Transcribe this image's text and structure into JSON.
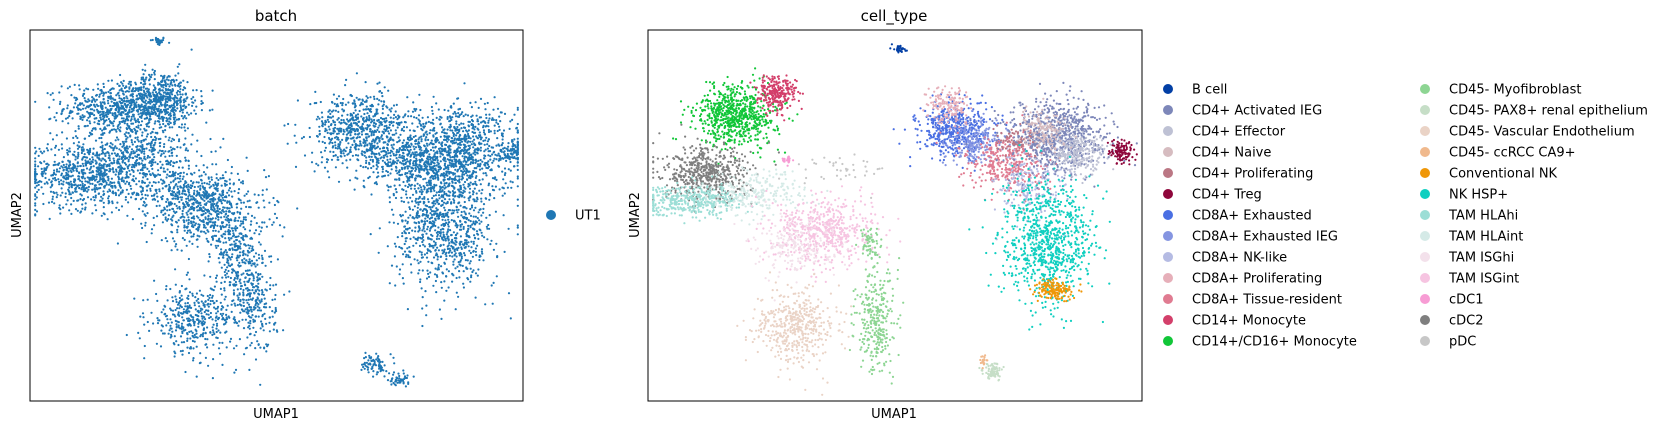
{
  "chart_data": [
    {
      "type": "scatter",
      "title": "batch",
      "xlabel": "UMAP1",
      "ylabel": "UMAP2",
      "grid": false,
      "legend_position": "right",
      "legend": [
        {
          "label": "UT1",
          "color": "#1f77b4"
        }
      ],
      "clusters": [
        {
          "label": "UT1",
          "color": "#1f77b4",
          "x": 0.26,
          "y": 0.97,
          "sx": 0.008,
          "sy": 0.006,
          "n": 30
        },
        {
          "label": "UT1",
          "color": "#1f77b4",
          "x": 0.19,
          "y": 0.79,
          "sx": 0.06,
          "sy": 0.035,
          "n": 700
        },
        {
          "label": "UT1",
          "color": "#1f77b4",
          "x": 0.27,
          "y": 0.81,
          "sx": 0.035,
          "sy": 0.04,
          "n": 400
        },
        {
          "label": "UT1",
          "color": "#1f77b4",
          "x": 0.11,
          "y": 0.61,
          "sx": 0.06,
          "sy": 0.045,
          "n": 650
        },
        {
          "label": "UT1",
          "color": "#1f77b4",
          "x": 0.22,
          "y": 0.66,
          "sx": 0.06,
          "sy": 0.04,
          "n": 450
        },
        {
          "label": "UT1",
          "color": "#1f77b4",
          "x": 0.36,
          "y": 0.51,
          "sx": 0.06,
          "sy": 0.05,
          "n": 550
        },
        {
          "label": "UT1",
          "color": "#1f77b4",
          "x": 0.3,
          "y": 0.56,
          "sx": 0.06,
          "sy": 0.025,
          "n": 250
        },
        {
          "label": "UT1",
          "color": "#1f77b4",
          "x": 0.33,
          "y": 0.22,
          "sx": 0.04,
          "sy": 0.045,
          "n": 380
        },
        {
          "label": "UT1",
          "color": "#1f77b4",
          "x": 0.45,
          "y": 0.27,
          "sx": 0.025,
          "sy": 0.07,
          "n": 300
        },
        {
          "label": "UT1",
          "color": "#1f77b4",
          "x": 0.42,
          "y": 0.4,
          "sx": 0.025,
          "sy": 0.05,
          "n": 200
        },
        {
          "label": "UT1",
          "color": "#1f77b4",
          "x": 0.67,
          "y": 0.73,
          "sx": 0.05,
          "sy": 0.05,
          "n": 650
        },
        {
          "label": "UT1",
          "color": "#1f77b4",
          "x": 0.78,
          "y": 0.65,
          "sx": 0.05,
          "sy": 0.04,
          "n": 400
        },
        {
          "label": "UT1",
          "color": "#1f77b4",
          "x": 0.87,
          "y": 0.68,
          "sx": 0.06,
          "sy": 0.06,
          "n": 850
        },
        {
          "label": "UT1",
          "color": "#1f77b4",
          "x": 0.84,
          "y": 0.48,
          "sx": 0.05,
          "sy": 0.09,
          "n": 950
        },
        {
          "label": "UT1",
          "color": "#1f77b4",
          "x": 0.98,
          "y": 0.67,
          "sx": 0.015,
          "sy": 0.015,
          "n": 70
        },
        {
          "label": "UT1",
          "color": "#1f77b4",
          "x": 0.7,
          "y": 0.1,
          "sx": 0.012,
          "sy": 0.015,
          "n": 80
        },
        {
          "label": "UT1",
          "color": "#1f77b4",
          "x": 0.75,
          "y": 0.06,
          "sx": 0.01,
          "sy": 0.01,
          "n": 50
        }
      ]
    },
    {
      "type": "scatter",
      "title": "cell_type",
      "xlabel": "UMAP1",
      "ylabel": "UMAP2",
      "grid": false,
      "legend_position": "right",
      "legend": [
        {
          "label": "B cell",
          "color": "#023fa5"
        },
        {
          "label": "CD4+ Activated IEG",
          "color": "#7d87b9"
        },
        {
          "label": "CD4+ Effector",
          "color": "#bec1d4"
        },
        {
          "label": "CD4+ Naive",
          "color": "#d6bcc0"
        },
        {
          "label": "CD4+ Proliferating",
          "color": "#bb7784"
        },
        {
          "label": "CD4+ Treg",
          "color": "#8e063b"
        },
        {
          "label": "CD8A+ Exhausted",
          "color": "#4a6fe3"
        },
        {
          "label": "CD8A+ Exhausted IEG",
          "color": "#8595e1"
        },
        {
          "label": "CD8A+ NK-like",
          "color": "#b5bbe3"
        },
        {
          "label": "CD8A+ Proliferating",
          "color": "#e6afb9"
        },
        {
          "label": "CD8A+ Tissue-resident",
          "color": "#e07b91"
        },
        {
          "label": "CD14+ Monocyte",
          "color": "#d33f6a"
        },
        {
          "label": "CD14+/CD16+ Monocyte",
          "color": "#11c638"
        },
        {
          "label": "CD45- Myofibroblast",
          "color": "#8dd593"
        },
        {
          "label": "CD45- PAX8+ renal epithelium",
          "color": "#c6dec7"
        },
        {
          "label": "CD45- Vascular Endothelium",
          "color": "#ead3c6"
        },
        {
          "label": "CD45- ccRCC CA9+",
          "color": "#f0b98d"
        },
        {
          "label": "Conventional NK",
          "color": "#ef9708"
        },
        {
          "label": "NK HSP+",
          "color": "#0fcfc0"
        },
        {
          "label": "TAM HLAhi",
          "color": "#9cded6"
        },
        {
          "label": "TAM HLAint",
          "color": "#d5eae7"
        },
        {
          "label": "TAM ISGhi",
          "color": "#f3e1eb"
        },
        {
          "label": "TAM ISGint",
          "color": "#f6c4e1"
        },
        {
          "label": "cDC1",
          "color": "#f79cd4"
        },
        {
          "label": "cDC2",
          "color": "#7f7f7f"
        },
        {
          "label": "pDC",
          "color": "#c7c7c7"
        }
      ],
      "clusters": [
        {
          "label": "B cell",
          "color": "#023fa5",
          "x": 0.51,
          "y": 0.95,
          "sx": 0.006,
          "sy": 0.006,
          "n": 30
        },
        {
          "label": "CD14+/CD16+ Monocyte",
          "color": "#11c638",
          "x": 0.18,
          "y": 0.77,
          "sx": 0.04,
          "sy": 0.04,
          "n": 700
        },
        {
          "label": "CD14+ Monocyte",
          "color": "#d33f6a",
          "x": 0.26,
          "y": 0.83,
          "sx": 0.02,
          "sy": 0.025,
          "n": 250
        },
        {
          "label": "cDC2",
          "color": "#7f7f7f",
          "x": 0.12,
          "y": 0.61,
          "sx": 0.045,
          "sy": 0.035,
          "n": 550
        },
        {
          "label": "TAM HLAhi",
          "color": "#9cded6",
          "x": 0.09,
          "y": 0.54,
          "sx": 0.05,
          "sy": 0.02,
          "n": 400
        },
        {
          "label": "TAM HLAint",
          "color": "#d5eae7",
          "x": 0.22,
          "y": 0.56,
          "sx": 0.05,
          "sy": 0.03,
          "n": 250
        },
        {
          "label": "TAM ISGint",
          "color": "#f6c4e1",
          "x": 0.36,
          "y": 0.46,
          "sx": 0.05,
          "sy": 0.045,
          "n": 550
        },
        {
          "label": "TAM ISGhi",
          "color": "#f3e1eb",
          "x": 0.3,
          "y": 0.42,
          "sx": 0.04,
          "sy": 0.04,
          "n": 200
        },
        {
          "label": "cDC1",
          "color": "#f79cd4",
          "x": 0.28,
          "y": 0.65,
          "sx": 0.006,
          "sy": 0.004,
          "n": 25
        },
        {
          "label": "CD45- Vascular Endothelium",
          "color": "#ead3c6",
          "x": 0.3,
          "y": 0.2,
          "sx": 0.04,
          "sy": 0.05,
          "n": 450
        },
        {
          "label": "CD45- Myofibroblast",
          "color": "#8dd593",
          "x": 0.46,
          "y": 0.22,
          "sx": 0.02,
          "sy": 0.07,
          "n": 300
        },
        {
          "label": "CD45- Myofibroblast",
          "color": "#8dd593",
          "x": 0.45,
          "y": 0.42,
          "sx": 0.01,
          "sy": 0.02,
          "n": 60
        },
        {
          "label": "CD45- PAX8+ renal epithelium",
          "color": "#c6dec7",
          "x": 0.7,
          "y": 0.08,
          "sx": 0.01,
          "sy": 0.012,
          "n": 80
        },
        {
          "label": "CD45- ccRCC CA9+",
          "color": "#f0b98d",
          "x": 0.68,
          "y": 0.11,
          "sx": 0.005,
          "sy": 0.008,
          "n": 20
        },
        {
          "label": "CD8A+ Exhausted",
          "color": "#4a6fe3",
          "x": 0.62,
          "y": 0.73,
          "sx": 0.035,
          "sy": 0.035,
          "n": 500
        },
        {
          "label": "CD8A+ Exhausted IEG",
          "color": "#8595e1",
          "x": 0.66,
          "y": 0.7,
          "sx": 0.03,
          "sy": 0.03,
          "n": 200
        },
        {
          "label": "CD8A+ Proliferating",
          "color": "#e6afb9",
          "x": 0.61,
          "y": 0.8,
          "sx": 0.02,
          "sy": 0.025,
          "n": 150
        },
        {
          "label": "CD8A+ Tissue-resident",
          "color": "#e07b91",
          "x": 0.73,
          "y": 0.64,
          "sx": 0.04,
          "sy": 0.04,
          "n": 350
        },
        {
          "label": "CD8A+ NK-like",
          "color": "#b5bbe3",
          "x": 0.77,
          "y": 0.58,
          "sx": 0.035,
          "sy": 0.05,
          "n": 200
        },
        {
          "label": "CD4+ Activated IEG",
          "color": "#7d87b9",
          "x": 0.83,
          "y": 0.71,
          "sx": 0.05,
          "sy": 0.05,
          "n": 750
        },
        {
          "label": "CD4+ Effector",
          "color": "#bec1d4",
          "x": 0.87,
          "y": 0.67,
          "sx": 0.03,
          "sy": 0.03,
          "n": 250
        },
        {
          "label": "CD4+ Naive",
          "color": "#d6bcc0",
          "x": 0.8,
          "y": 0.73,
          "sx": 0.025,
          "sy": 0.025,
          "n": 150
        },
        {
          "label": "CD4+ Proliferating",
          "color": "#bb7784",
          "x": 0.74,
          "y": 0.7,
          "sx": 0.02,
          "sy": 0.02,
          "n": 60
        },
        {
          "label": "CD4+ Treg",
          "color": "#8e063b",
          "x": 0.96,
          "y": 0.67,
          "sx": 0.012,
          "sy": 0.015,
          "n": 110
        },
        {
          "label": "NK HSP+",
          "color": "#0fcfc0",
          "x": 0.81,
          "y": 0.43,
          "sx": 0.045,
          "sy": 0.08,
          "n": 850
        },
        {
          "label": "Conventional NK",
          "color": "#ef9708",
          "x": 0.82,
          "y": 0.3,
          "sx": 0.02,
          "sy": 0.015,
          "n": 150
        },
        {
          "label": "pDC",
          "color": "#c7c7c7",
          "x": 0.4,
          "y": 0.62,
          "sx": 0.05,
          "sy": 0.02,
          "n": 40
        }
      ]
    }
  ]
}
